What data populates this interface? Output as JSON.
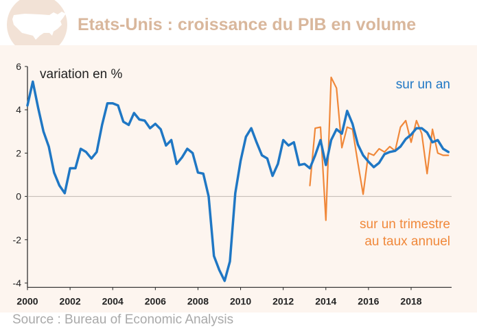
{
  "title": "Etats-Unis : croissance du PIB en volume",
  "source": "Source : Bureau of Economic Analysis",
  "colors": {
    "title": "#d9b79c",
    "annual": "#1f77c4",
    "quarterly": "#f0883a",
    "background": "#fdf5ef",
    "axis": "#222222",
    "map": "#e0c4ae"
  },
  "chart_data": {
    "type": "line",
    "ylabel": "variation en %",
    "xlim": [
      2000,
      2019.9
    ],
    "ylim": [
      -4.2,
      6
    ],
    "x_ticks": [
      2000,
      2002,
      2004,
      2006,
      2008,
      2010,
      2012,
      2014,
      2016,
      2018
    ],
    "y_ticks": [
      -4,
      -2,
      0,
      2,
      4,
      6
    ],
    "grid": false,
    "series": [
      {
        "name": "sur un an",
        "color": "#1f77c4",
        "x": [
          2000.0,
          2000.25,
          2000.5,
          2000.75,
          2001.0,
          2001.25,
          2001.5,
          2001.75,
          2002.0,
          2002.25,
          2002.5,
          2002.75,
          2003.0,
          2003.25,
          2003.5,
          2003.75,
          2004.0,
          2004.25,
          2004.5,
          2004.75,
          2005.0,
          2005.25,
          2005.5,
          2005.75,
          2006.0,
          2006.25,
          2006.5,
          2006.75,
          2007.0,
          2007.25,
          2007.5,
          2007.75,
          2008.0,
          2008.25,
          2008.5,
          2008.75,
          2009.0,
          2009.25,
          2009.5,
          2009.75,
          2010.0,
          2010.25,
          2010.5,
          2010.75,
          2011.0,
          2011.25,
          2011.5,
          2011.75,
          2012.0,
          2012.25,
          2012.5,
          2012.75,
          2013.0,
          2013.25,
          2013.5,
          2013.75,
          2014.0,
          2014.25,
          2014.5,
          2014.75,
          2015.0,
          2015.25,
          2015.5,
          2015.75,
          2016.0,
          2016.25,
          2016.5,
          2016.75,
          2017.0,
          2017.25,
          2017.5,
          2017.75,
          2018.0,
          2018.25,
          2018.5,
          2018.75,
          2019.0,
          2019.25,
          2019.5,
          2019.75
        ],
        "values": [
          4.2,
          5.3,
          4.1,
          3.0,
          2.3,
          1.1,
          0.5,
          0.15,
          1.3,
          1.3,
          2.2,
          2.05,
          1.75,
          2.05,
          3.3,
          4.3,
          4.3,
          4.2,
          3.45,
          3.3,
          3.85,
          3.55,
          3.5,
          3.15,
          3.35,
          3.1,
          2.35,
          2.6,
          1.5,
          1.8,
          2.2,
          2.0,
          1.1,
          1.05,
          0.0,
          -2.75,
          -3.4,
          -3.9,
          -3.0,
          0.15,
          1.65,
          2.75,
          3.15,
          2.5,
          1.9,
          1.75,
          0.95,
          1.5,
          2.6,
          2.35,
          2.5,
          1.45,
          1.5,
          1.3,
          1.9,
          2.6,
          1.45,
          2.6,
          3.1,
          2.9,
          3.95,
          3.35,
          2.4,
          1.9,
          1.6,
          1.35,
          1.55,
          1.95,
          2.05,
          2.1,
          2.3,
          2.65,
          2.85,
          3.15,
          3.15,
          2.95,
          2.5,
          2.6,
          2.2,
          2.05
        ]
      },
      {
        "name": "sur un trimestre au taux annuel",
        "color": "#f0883a",
        "x": [
          2013.25,
          2013.5,
          2013.75,
          2014.0,
          2014.25,
          2014.5,
          2014.75,
          2015.0,
          2015.25,
          2015.5,
          2015.75,
          2016.0,
          2016.25,
          2016.5,
          2016.75,
          2017.0,
          2017.25,
          2017.5,
          2017.75,
          2018.0,
          2018.25,
          2018.5,
          2018.75,
          2019.0,
          2019.25,
          2019.5,
          2019.75
        ],
        "values": [
          0.5,
          3.15,
          3.2,
          -1.1,
          5.5,
          5.0,
          2.25,
          3.2,
          3.1,
          1.55,
          0.1,
          2.0,
          1.9,
          2.2,
          2.05,
          2.3,
          2.1,
          3.2,
          3.5,
          2.5,
          3.5,
          2.9,
          1.05,
          3.1,
          2.0,
          1.9,
          1.9
        ]
      }
    ]
  }
}
